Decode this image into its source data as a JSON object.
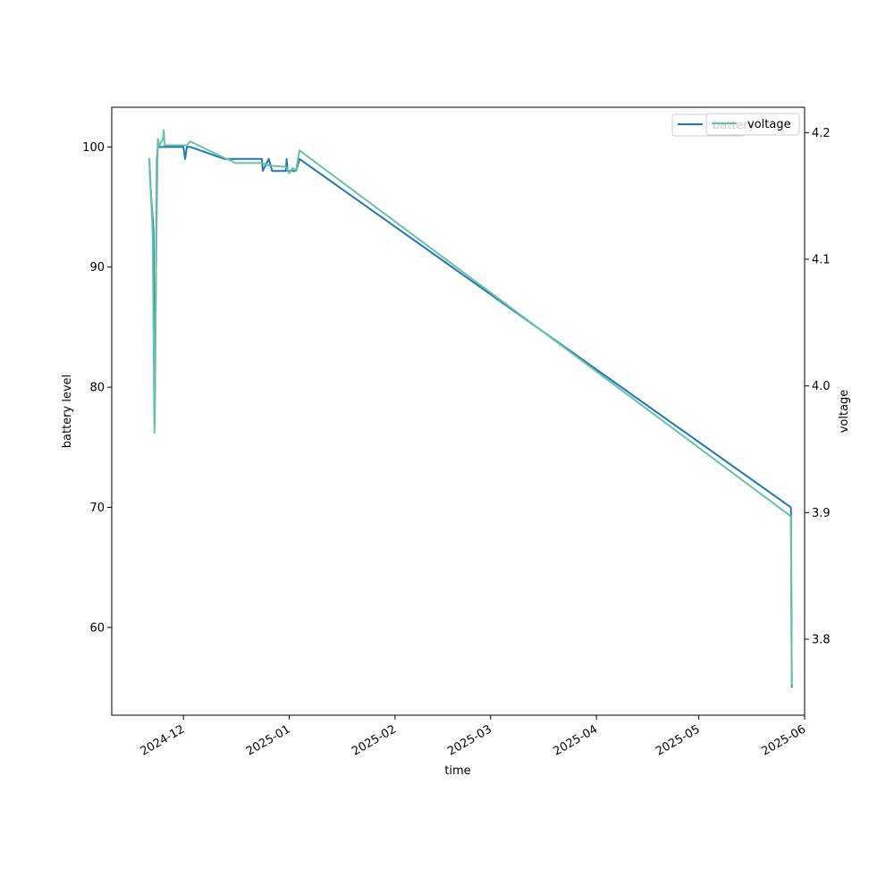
{
  "chart_data": {
    "type": "line",
    "x_axis": {
      "label": "time",
      "range": [
        "2024-11-10",
        "2025-06-01"
      ],
      "ticks": [
        "2024-12",
        "2025-01",
        "2025-02",
        "2025-03",
        "2025-04",
        "2025-05",
        "2025-06"
      ],
      "tick_dates": [
        "2024-12-01",
        "2025-01-01",
        "2025-02-01",
        "2025-03-01",
        "2025-04-01",
        "2025-05-01",
        "2025-06-01"
      ]
    },
    "y_left": {
      "label": "battery level",
      "range": [
        52.7,
        103.3
      ],
      "ticks": [
        60,
        70,
        80,
        90,
        100
      ]
    },
    "y_right": {
      "label": "voltage",
      "range": [
        3.74,
        4.22
      ],
      "ticks": [
        3.8,
        3.9,
        4.0,
        4.1,
        4.2
      ]
    },
    "grid": false,
    "legend_position": "top-right",
    "legend": [
      {
        "label": "battery",
        "color": "#1f77b4"
      },
      {
        "label": "voltage",
        "color": "#66c2a5"
      }
    ],
    "series": [
      {
        "name": "battery",
        "axis": "left",
        "color": "#1f77b4",
        "points": [
          [
            "2024-11-21T00:00",
            99
          ],
          [
            "2024-11-21T12:00",
            96
          ],
          [
            "2024-11-22T06:00",
            93
          ],
          [
            "2024-11-22T14:00",
            77
          ],
          [
            "2024-11-22T22:00",
            88
          ],
          [
            "2024-11-23T06:00",
            99
          ],
          [
            "2024-11-23T12:00",
            100
          ],
          [
            "2024-12-01T00:00",
            100
          ],
          [
            "2024-12-01T12:00",
            99
          ],
          [
            "2024-12-02T00:00",
            100
          ],
          [
            "2024-12-03T00:00",
            100
          ],
          [
            "2024-12-13T00:00",
            99
          ],
          [
            "2024-12-24T00:00",
            99
          ],
          [
            "2024-12-24T06:00",
            98
          ],
          [
            "2024-12-26T00:00",
            99
          ],
          [
            "2024-12-27T00:00",
            98
          ],
          [
            "2024-12-31T00:00",
            98
          ],
          [
            "2024-12-31T06:00",
            99
          ],
          [
            "2024-12-31T12:00",
            98
          ],
          [
            "2025-01-03T00:00",
            98
          ],
          [
            "2025-01-04T00:00",
            99
          ],
          [
            "2025-05-28T00:00",
            70
          ],
          [
            "2025-05-28T06:00",
            55
          ]
        ]
      },
      {
        "name": "voltage",
        "axis": "right",
        "color": "#66c2a5",
        "points": [
          [
            "2024-11-21T00:00",
            4.18
          ],
          [
            "2024-11-22T00:00",
            4.12
          ],
          [
            "2024-11-22T12:00",
            3.963
          ],
          [
            "2024-11-23T00:00",
            4.1
          ],
          [
            "2024-11-23T12:00",
            4.195
          ],
          [
            "2024-11-24T00:00",
            4.19
          ],
          [
            "2024-11-25T00:00",
            4.195
          ],
          [
            "2024-11-25T06:00",
            4.202
          ],
          [
            "2024-11-25T12:00",
            4.19
          ],
          [
            "2024-12-02T00:00",
            4.19
          ],
          [
            "2024-12-03T00:00",
            4.193
          ],
          [
            "2024-12-13T00:00",
            4.18
          ],
          [
            "2024-12-15T00:00",
            4.178
          ],
          [
            "2024-12-16T00:00",
            4.176
          ],
          [
            "2024-12-24T00:00",
            4.176
          ],
          [
            "2024-12-26T00:00",
            4.174
          ],
          [
            "2024-12-31T00:00",
            4.173
          ],
          [
            "2025-01-01T00:00",
            4.168
          ],
          [
            "2025-01-02T00:00",
            4.172
          ],
          [
            "2025-01-03T00:00",
            4.17
          ],
          [
            "2025-01-04T00:00",
            4.186
          ],
          [
            "2025-05-28T00:00",
            3.897
          ],
          [
            "2025-05-28T06:00",
            3.763
          ]
        ]
      }
    ]
  }
}
